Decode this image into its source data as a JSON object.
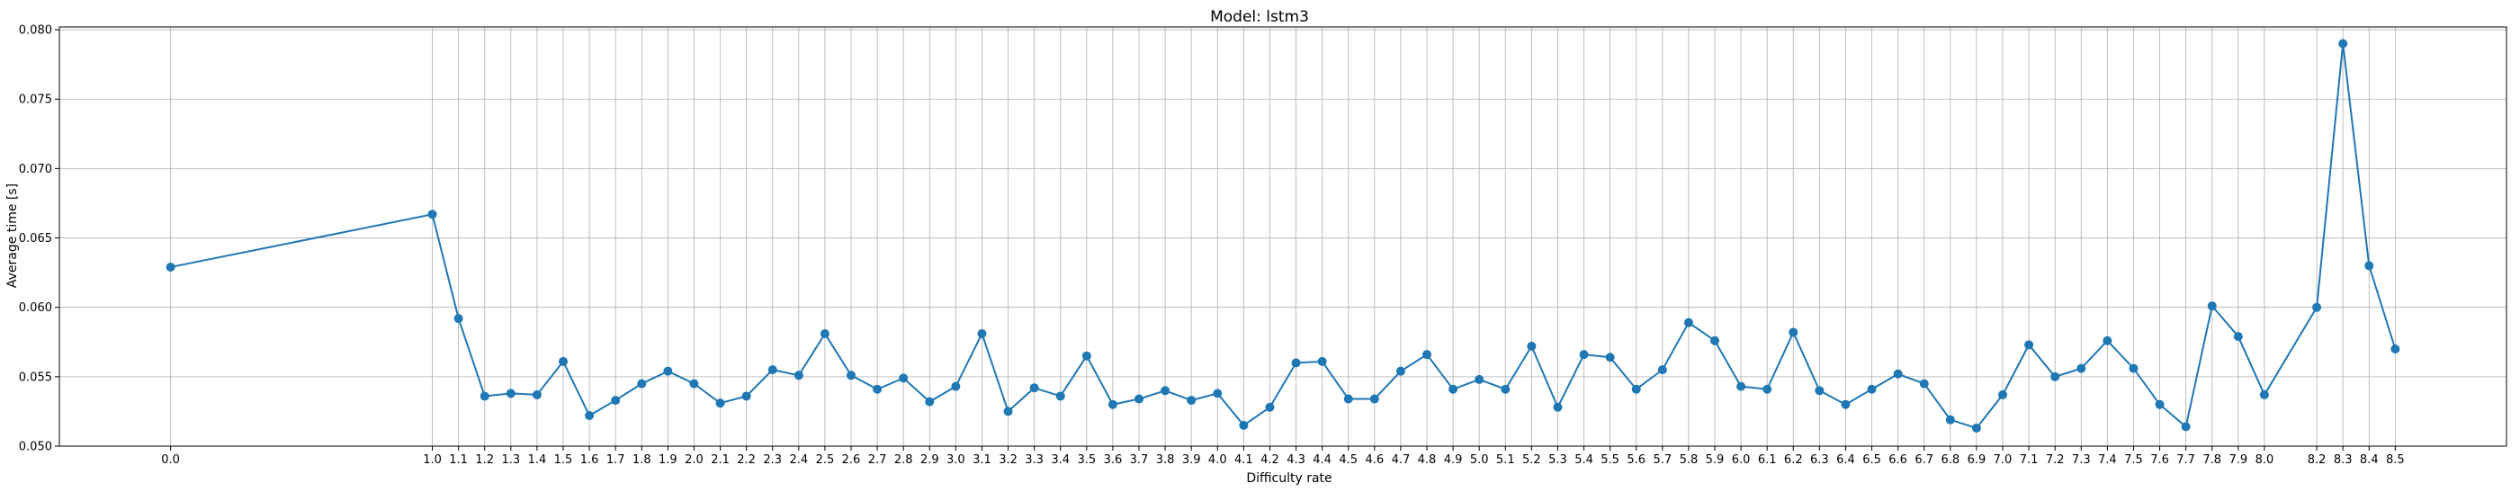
{
  "chart_data": {
    "type": "line",
    "title": "Model: lstm3",
    "xlabel": "Difficulty rate",
    "ylabel": "Average time [s]",
    "xlim": [
      -0.425,
      8.925
    ],
    "ylim": [
      0.05,
      0.0802
    ],
    "grid": true,
    "color": "#1f77b4",
    "x_ticks": [
      "0.0",
      "1.0",
      "1.1",
      "1.2",
      "1.3",
      "1.4",
      "1.5",
      "1.6",
      "1.7",
      "1.8",
      "1.9",
      "2.0",
      "2.1",
      "2.2",
      "2.3",
      "2.4",
      "2.5",
      "2.6",
      "2.7",
      "2.8",
      "2.9",
      "3.0",
      "3.1",
      "3.2",
      "3.3",
      "3.4",
      "3.5",
      "3.6",
      "3.7",
      "3.8",
      "3.9",
      "4.0",
      "4.1",
      "4.2",
      "4.3",
      "4.4",
      "4.5",
      "4.6",
      "4.7",
      "4.8",
      "4.9",
      "5.0",
      "5.1",
      "5.2",
      "5.3",
      "5.4",
      "5.5",
      "5.6",
      "5.7",
      "5.8",
      "5.9",
      "6.0",
      "6.1",
      "6.2",
      "6.3",
      "6.4",
      "6.5",
      "6.6",
      "6.7",
      "6.8",
      "6.9",
      "7.0",
      "7.1",
      "7.2",
      "7.3",
      "7.4",
      "7.5",
      "7.6",
      "7.7",
      "7.8",
      "7.9",
      "8.0",
      "8.2",
      "8.3",
      "8.4",
      "8.5"
    ],
    "y_ticks": [
      "0.050",
      "0.055",
      "0.060",
      "0.065",
      "0.070",
      "0.075",
      "0.080"
    ],
    "x": [
      0.0,
      1.0,
      1.1,
      1.2,
      1.3,
      1.4,
      1.5,
      1.6,
      1.7,
      1.8,
      1.9,
      2.0,
      2.1,
      2.2,
      2.3,
      2.4,
      2.5,
      2.6,
      2.7,
      2.8,
      2.9,
      3.0,
      3.1,
      3.2,
      3.3,
      3.4,
      3.5,
      3.6,
      3.7,
      3.8,
      3.9,
      4.0,
      4.1,
      4.2,
      4.3,
      4.4,
      4.5,
      4.6,
      4.7,
      4.8,
      4.9,
      5.0,
      5.1,
      5.2,
      5.3,
      5.4,
      5.5,
      5.6,
      5.7,
      5.8,
      5.9,
      6.0,
      6.1,
      6.2,
      6.3,
      6.4,
      6.5,
      6.6,
      6.7,
      6.8,
      6.9,
      7.0,
      7.1,
      7.2,
      7.3,
      7.4,
      7.5,
      7.6,
      7.7,
      7.8,
      7.9,
      8.0,
      8.2,
      8.3,
      8.4,
      8.5
    ],
    "y": [
      0.0629,
      0.0667,
      0.0592,
      0.0536,
      0.0538,
      0.0537,
      0.0561,
      0.0522,
      0.0533,
      0.0545,
      0.0554,
      0.0545,
      0.0531,
      0.0536,
      0.0555,
      0.0551,
      0.0581,
      0.0551,
      0.0541,
      0.0549,
      0.0532,
      0.0543,
      0.0581,
      0.0525,
      0.0542,
      0.0536,
      0.0565,
      0.053,
      0.0534,
      0.054,
      0.0533,
      0.0538,
      0.0515,
      0.0528,
      0.056,
      0.0561,
      0.0534,
      0.0534,
      0.0554,
      0.0566,
      0.0541,
      0.0548,
      0.0541,
      0.0572,
      0.0528,
      0.0566,
      0.0564,
      0.0541,
      0.0555,
      0.0589,
      0.0576,
      0.0543,
      0.0541,
      0.0582,
      0.054,
      0.053,
      0.0541,
      0.0552,
      0.0545,
      0.0519,
      0.0513,
      0.0537,
      0.0573,
      0.055,
      0.0556,
      0.0576,
      0.0556,
      0.053,
      0.0514,
      0.0601,
      0.0579,
      0.0537,
      0.06,
      0.079,
      0.063,
      0.057
    ]
  }
}
